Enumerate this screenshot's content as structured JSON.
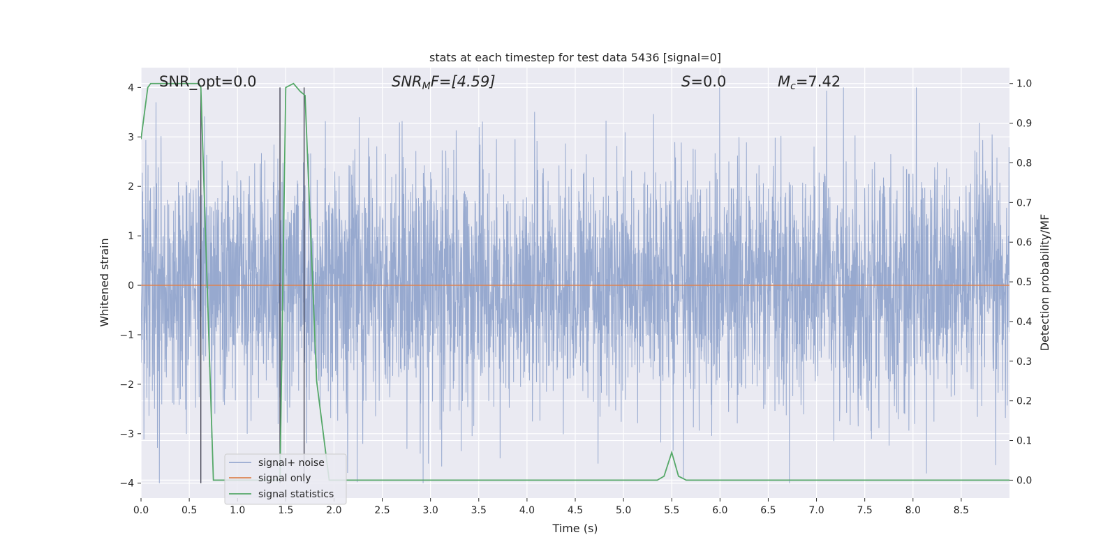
{
  "chart_data": {
    "type": "line",
    "title": "stats at each timestep for test data 5436 [signal=0]",
    "xlabel": "Time (s)",
    "ylabel": "Whitened strain",
    "y2label": "Detection probability/MF",
    "xlim": [
      0.0,
      9.0
    ],
    "ylim": [
      -4.3,
      4.4
    ],
    "y2lim": [
      -0.045,
      1.04
    ],
    "x_ticks": [
      "0.0",
      "0.5",
      "1.0",
      "1.5",
      "2.0",
      "2.5",
      "3.0",
      "3.5",
      "4.0",
      "4.5",
      "5.0",
      "5.5",
      "6.0",
      "6.5",
      "7.0",
      "7.5",
      "8.0",
      "8.5"
    ],
    "y_ticks": [
      "4",
      "3",
      "2",
      "1",
      "0",
      "−1",
      "−2",
      "−3",
      "−4"
    ],
    "y2_ticks": [
      "1.0",
      "0.9",
      "0.8",
      "0.7",
      "0.6",
      "0.5",
      "0.4",
      "0.3",
      "0.2",
      "0.1",
      "0.0"
    ],
    "annotations": {
      "snr_opt": "SNR_opt=0.0",
      "snr_mf_name": "SNR",
      "snr_mf_sub": "M",
      "snr_mf_rest": "F=[4.59]",
      "s_name": "S",
      "s_rest": "=0.0",
      "mc_name": "M",
      "mc_sub": "c",
      "mc_rest": "=7.42"
    },
    "legend": {
      "placement": "lower-left",
      "entries": [
        "signal+ noise",
        "signal only",
        "signal statistics"
      ]
    },
    "series": [
      {
        "name": "signal+ noise",
        "axis": "left",
        "style": "dense noise, amplitude ~ +-2.3 typical, peaks up to ~4",
        "typical_amplitude": 2.3,
        "peak_amplitude": 4.0
      },
      {
        "name": "signal only",
        "axis": "left",
        "x": [
          0.0,
          9.0
        ],
        "y": [
          0.0,
          0.0
        ]
      },
      {
        "name": "signal statistics",
        "axis": "right",
        "x": [
          0.0,
          0.07,
          0.1,
          0.6,
          0.62,
          0.75,
          0.8,
          1.44,
          1.5,
          1.58,
          1.65,
          1.7,
          1.82,
          1.95,
          5.35,
          5.42,
          5.5,
          5.57,
          5.65,
          9.0
        ],
        "y": [
          0.86,
          0.99,
          1.0,
          1.0,
          0.99,
          0.0,
          0.0,
          0.0,
          0.99,
          1.0,
          0.98,
          0.97,
          0.25,
          0.0,
          0.0,
          0.01,
          0.07,
          0.01,
          0.0,
          0.0
        ]
      }
    ],
    "vertical_lines": {
      "x": [
        0.62,
        1.44,
        1.69
      ],
      "ymin": -4.0,
      "ymax": 4.0
    },
    "colors": {
      "background": "#eaeaf2",
      "grid": "#ffffff",
      "noise": "#97a9cf",
      "signal_only": "#dd8452",
      "statistics": "#55a868",
      "vlines": "#3a3a4a"
    },
    "grid": true
  }
}
